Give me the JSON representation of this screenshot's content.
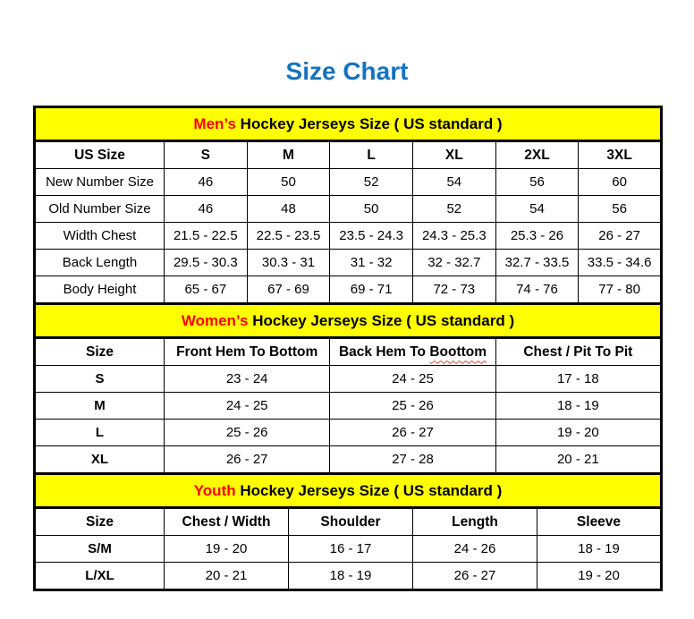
{
  "page": {
    "title": "Size Chart"
  },
  "colors": {
    "title_blue": "#1673bd",
    "banner_yellow": "#ffff00",
    "banner_highlight_red": "#ff0000",
    "spellcheck_wavy_red": "#d14836",
    "border_black": "#000000"
  },
  "men": {
    "banner_highlight": "Men’s",
    "banner_rest": " Hockey Jerseys Size ( US standard )",
    "columns": [
      "US Size",
      "S",
      "M",
      "L",
      "XL",
      "2XL",
      "3XL"
    ],
    "rows": [
      {
        "label": "New Number Size",
        "values": [
          "46",
          "50",
          "52",
          "54",
          "56",
          "60"
        ]
      },
      {
        "label": "Old Number Size",
        "values": [
          "46",
          "48",
          "50",
          "52",
          "54",
          "56"
        ]
      },
      {
        "label": "Width Chest",
        "values": [
          "21.5 - 22.5",
          "22.5 - 23.5",
          "23.5 - 24.3",
          "24.3 - 25.3",
          "25.3 - 26",
          "26 - 27"
        ]
      },
      {
        "label": "Back Length",
        "values": [
          "29.5 - 30.3",
          "30.3 - 31",
          "31 - 32",
          "32 - 32.7",
          "32.7 - 33.5",
          "33.5 - 34.6"
        ]
      },
      {
        "label": "Body Height",
        "values": [
          "65 - 67",
          "67 - 69",
          "69 - 71",
          "72 - 73",
          "74 - 76",
          "77 - 80"
        ]
      }
    ]
  },
  "women": {
    "banner_highlight": "Women’s",
    "banner_rest": " Hockey Jerseys Size ( US standard )",
    "header": {
      "size": "Size",
      "front_hem": "Front Hem To Bottom",
      "back_hem_prefix": "Back Hem To ",
      "back_hem_typo": "Boottom",
      "chest": "Chest / Pit To Pit"
    },
    "rows": [
      {
        "label": "S",
        "values": [
          "23 - 24",
          "24 - 25",
          "17 - 18"
        ]
      },
      {
        "label": "M",
        "values": [
          "24 - 25",
          "25 - 26",
          "18 - 19"
        ]
      },
      {
        "label": "L",
        "values": [
          "25 - 26",
          "26 - 27",
          "19 - 20"
        ]
      },
      {
        "label": "XL",
        "values": [
          "26 - 27",
          "27 - 28",
          "20 - 21"
        ]
      }
    ]
  },
  "youth": {
    "banner_highlight": "Youth",
    "banner_rest": " Hockey Jerseys Size ( US standard )",
    "columns": [
      "Size",
      "Chest / Width",
      "Shoulder",
      "Length",
      "Sleeve"
    ],
    "rows": [
      {
        "label": "S/M",
        "values": [
          "19 - 20",
          "16 - 17",
          "24 - 26",
          "18 - 19"
        ]
      },
      {
        "label": "L/XL",
        "values": [
          "20 - 21",
          "18 - 19",
          "26 - 27",
          "19 - 20"
        ]
      }
    ]
  }
}
